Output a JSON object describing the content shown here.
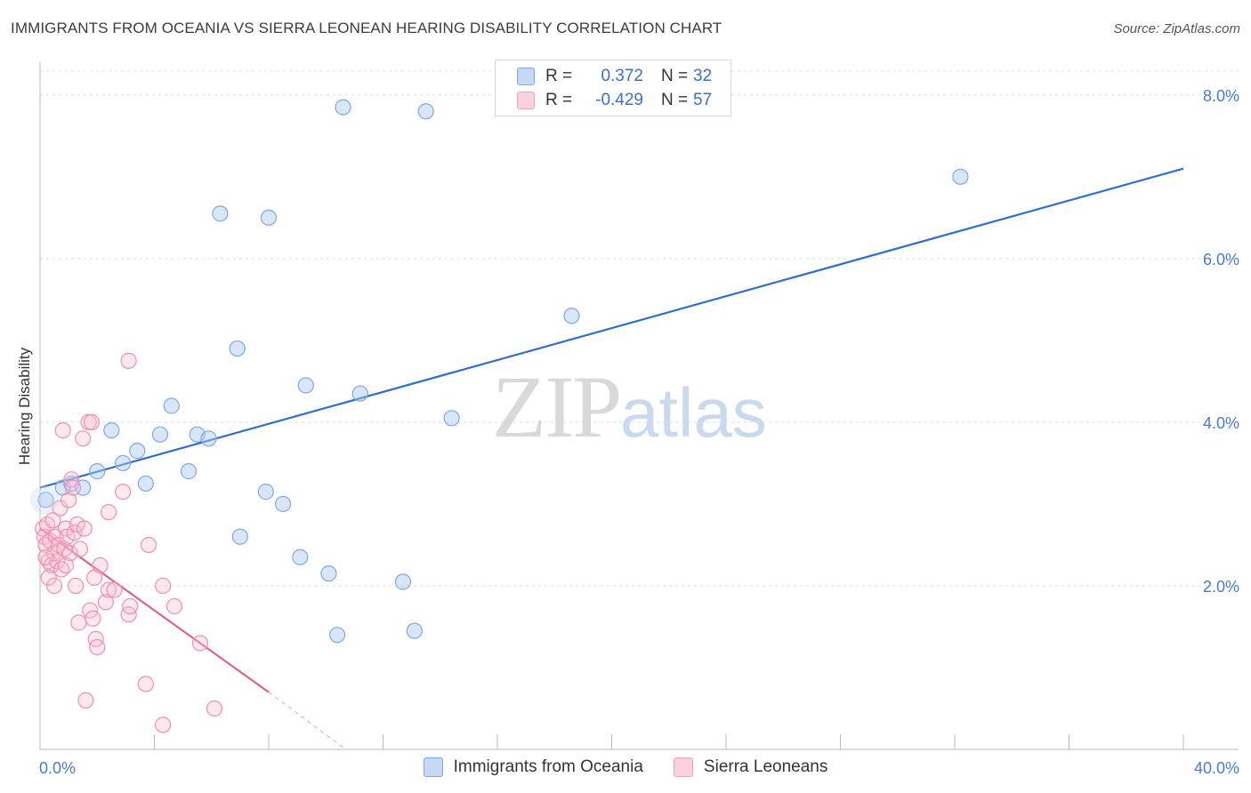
{
  "title": "IMMIGRANTS FROM OCEANIA VS SIERRA LEONEAN HEARING DISABILITY CORRELATION CHART",
  "source": "Source: ZipAtlas.com",
  "watermark": {
    "zip": "ZIP",
    "atlas": "atlas"
  },
  "legend": {
    "rows": [
      {
        "r_label": "R =",
        "r_value": "0.372",
        "n_label": "N =",
        "n_value": "32"
      },
      {
        "r_label": "R =",
        "r_value": "-0.429",
        "n_label": "N =",
        "n_value": "57"
      }
    ]
  },
  "chart_data": {
    "type": "scatter",
    "title": "IMMIGRANTS FROM OCEANIA VS SIERRA LEONEAN HEARING DISABILITY CORRELATION CHART",
    "ylabel": "Hearing Disability",
    "xlabel": "",
    "xlim": [
      0,
      40
    ],
    "ylim": [
      0,
      8.4
    ],
    "x_tick_labels": [
      "0.0%",
      "40.0%"
    ],
    "y_ticks": [
      2,
      4,
      6,
      8
    ],
    "y_tick_labels": [
      "2.0%",
      "4.0%",
      "6.0%",
      "8.0%"
    ],
    "grid": "horizontal dashed",
    "legend_position": "top-center",
    "colors": {
      "oceania": "#7fa8e3",
      "oceania_line": "#2f6fca",
      "sierra": "#f2a1bb",
      "sierra_line": "#e0608e"
    },
    "series": [
      {
        "name": "Immigrants from Oceania",
        "r": 0.372,
        "n": 32,
        "trend": {
          "x": [
            0,
            40
          ],
          "y": [
            3.2,
            7.1
          ]
        },
        "points": [
          [
            0.2,
            3.05
          ],
          [
            0.8,
            3.2
          ],
          [
            1.1,
            3.25
          ],
          [
            1.5,
            3.2
          ],
          [
            2.0,
            3.4
          ],
          [
            2.5,
            3.9
          ],
          [
            2.9,
            3.5
          ],
          [
            3.4,
            3.65
          ],
          [
            3.7,
            3.25
          ],
          [
            4.2,
            3.85
          ],
          [
            4.6,
            4.2
          ],
          [
            5.2,
            3.4
          ],
          [
            5.5,
            3.85
          ],
          [
            5.9,
            3.8
          ],
          [
            6.3,
            6.55
          ],
          [
            6.9,
            4.9
          ],
          [
            7.0,
            2.6
          ],
          [
            7.9,
            3.15
          ],
          [
            8.0,
            6.5
          ],
          [
            8.5,
            3.0
          ],
          [
            9.1,
            2.35
          ],
          [
            9.3,
            4.45
          ],
          [
            10.1,
            2.15
          ],
          [
            10.4,
            1.4
          ],
          [
            10.6,
            7.85
          ],
          [
            11.2,
            4.35
          ],
          [
            12.7,
            2.05
          ],
          [
            13.1,
            1.45
          ],
          [
            13.5,
            7.8
          ],
          [
            14.4,
            4.05
          ],
          [
            18.6,
            5.3
          ],
          [
            32.2,
            7.0
          ]
        ]
      },
      {
        "name": "Sierra Leoneans",
        "r": -0.429,
        "n": 57,
        "trend": {
          "x": [
            0,
            8.0
          ],
          "y": [
            2.7,
            0.7
          ]
        },
        "trend_dashed": {
          "x": [
            8.0,
            10.7
          ],
          "y": [
            0.7,
            0.0
          ]
        },
        "points": [
          [
            0.1,
            2.7
          ],
          [
            0.15,
            2.6
          ],
          [
            0.2,
            2.5
          ],
          [
            0.25,
            2.75
          ],
          [
            0.3,
            2.3
          ],
          [
            0.35,
            2.55
          ],
          [
            0.4,
            2.25
          ],
          [
            0.45,
            2.8
          ],
          [
            0.5,
            2.4
          ],
          [
            0.55,
            2.6
          ],
          [
            0.6,
            2.3
          ],
          [
            0.65,
            2.5
          ],
          [
            0.7,
            2.95
          ],
          [
            0.75,
            2.2
          ],
          [
            0.8,
            3.9
          ],
          [
            0.85,
            2.45
          ],
          [
            0.9,
            2.7
          ],
          [
            0.95,
            2.6
          ],
          [
            1.0,
            3.05
          ],
          [
            1.05,
            2.4
          ],
          [
            1.1,
            3.3
          ],
          [
            1.15,
            3.2
          ],
          [
            1.2,
            2.65
          ],
          [
            1.3,
            2.75
          ],
          [
            1.35,
            1.55
          ],
          [
            1.4,
            2.45
          ],
          [
            1.5,
            3.8
          ],
          [
            1.55,
            2.7
          ],
          [
            1.6,
            0.6
          ],
          [
            1.7,
            4.0
          ],
          [
            1.75,
            1.7
          ],
          [
            1.8,
            4.0
          ],
          [
            1.85,
            1.6
          ],
          [
            1.9,
            2.1
          ],
          [
            1.95,
            1.35
          ],
          [
            2.0,
            1.25
          ],
          [
            2.1,
            2.25
          ],
          [
            2.3,
            1.8
          ],
          [
            2.4,
            1.95
          ],
          [
            2.4,
            2.9
          ],
          [
            2.6,
            1.95
          ],
          [
            2.9,
            3.15
          ],
          [
            3.1,
            1.65
          ],
          [
            3.15,
            1.75
          ],
          [
            3.1,
            4.75
          ],
          [
            3.7,
            0.8
          ],
          [
            3.8,
            2.5
          ],
          [
            4.3,
            0.3
          ],
          [
            4.3,
            2.0
          ],
          [
            4.7,
            1.75
          ],
          [
            5.6,
            1.3
          ],
          [
            6.1,
            0.5
          ],
          [
            0.3,
            2.1
          ],
          [
            0.5,
            2.0
          ],
          [
            0.9,
            2.25
          ],
          [
            1.25,
            2.0
          ],
          [
            0.2,
            2.35
          ]
        ]
      }
    ]
  },
  "bottom_legend": [
    {
      "label": "Immigrants from Oceania"
    },
    {
      "label": "Sierra Leoneans"
    }
  ]
}
